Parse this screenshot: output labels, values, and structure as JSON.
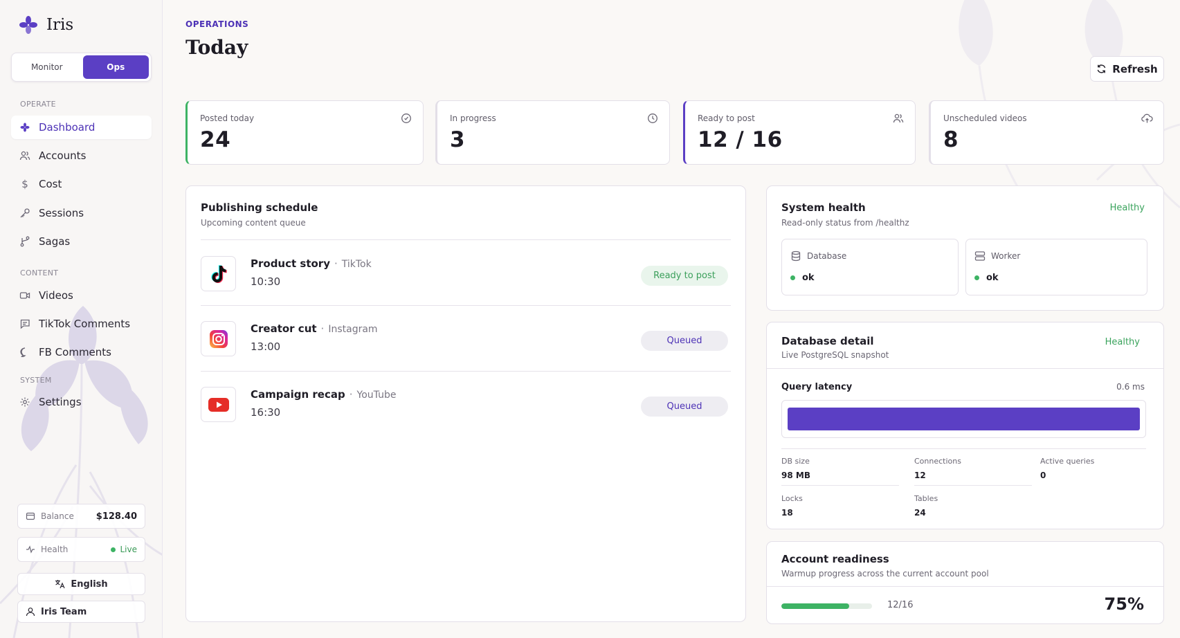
{
  "brand": {
    "name": "Iris"
  },
  "mode_switch": {
    "monitor": "Monitor",
    "ops": "Ops",
    "active": "Ops"
  },
  "sidebar": {
    "sections": {
      "operate": "OPERATE",
      "content": "CONTENT",
      "system": "SYSTEM"
    },
    "items": [
      {
        "label": "Dashboard",
        "icon": "iris-icon",
        "active": true
      },
      {
        "label": "Accounts",
        "icon": "users-icon"
      },
      {
        "label": "Cost",
        "icon": "dollar-icon"
      },
      {
        "label": "Sessions",
        "icon": "key-icon"
      },
      {
        "label": "Sagas",
        "icon": "branch-icon"
      },
      {
        "label": "Videos",
        "icon": "video-icon"
      },
      {
        "label": "TikTok Comments",
        "icon": "comment-square-icon"
      },
      {
        "label": "FB Comments",
        "icon": "comment-round-icon"
      },
      {
        "label": "Settings",
        "icon": "gear-icon"
      }
    ],
    "balance": {
      "label": "Balance",
      "value": "$128.40"
    },
    "health": {
      "label": "Health",
      "status": "Live"
    },
    "language": "English",
    "user": "Iris Team"
  },
  "header": {
    "eyebrow": "OPERATIONS",
    "title": "Today",
    "refresh": "Refresh"
  },
  "stats": [
    {
      "label": "Posted today",
      "value": "24",
      "icon": "clock-check-icon",
      "accent": "#3db364"
    },
    {
      "label": "In progress",
      "value": "3",
      "icon": "clock-icon",
      "accent": "#c9c4d4"
    },
    {
      "label": "Ready to post",
      "value": "12 / 16",
      "icon": "users-icon",
      "accent": "#5b3fc4"
    },
    {
      "label": "Unscheduled videos",
      "value": "8",
      "icon": "cloud-upload-icon",
      "accent": "#c9c4d4"
    }
  ],
  "schedule": {
    "title": "Publishing schedule",
    "subtitle": "Upcoming content queue",
    "items": [
      {
        "title": "Product story",
        "platform": "TikTok",
        "time": "10:30",
        "status": "Ready to post",
        "status_kind": "ready",
        "icon": "tiktok-icon"
      },
      {
        "title": "Creator cut",
        "platform": "Instagram",
        "time": "13:00",
        "status": "Queued",
        "status_kind": "queued",
        "icon": "instagram-icon"
      },
      {
        "title": "Campaign recap",
        "platform": "YouTube",
        "time": "16:30",
        "status": "Queued",
        "status_kind": "queued",
        "icon": "youtube-icon"
      }
    ]
  },
  "system_health": {
    "title": "System health",
    "subtitle": "Read-only status from /healthz",
    "status": "Healthy",
    "services": [
      {
        "name": "Database",
        "status": "ok",
        "icon": "database-icon"
      },
      {
        "name": "Worker",
        "status": "ok",
        "icon": "server-icon"
      }
    ]
  },
  "database_detail": {
    "title": "Database detail",
    "subtitle": "Live PostgreSQL snapshot",
    "status": "Healthy",
    "latency_label": "Query latency",
    "latency_value": "0.6 ms",
    "latency_fill": 1.0,
    "metrics": [
      {
        "label": "DB size",
        "value": "98 MB"
      },
      {
        "label": "Connections",
        "value": "12"
      },
      {
        "label": "Active queries",
        "value": "0"
      },
      {
        "label": "Locks",
        "value": "18"
      },
      {
        "label": "Tables",
        "value": "24"
      }
    ]
  },
  "account_readiness": {
    "title": "Account readiness",
    "subtitle": "Warmup progress across the current account pool",
    "count": "12/16",
    "percent": "75%",
    "progress": 0.75
  },
  "colors": {
    "accent": "#5b3fc4",
    "success": "#3db364",
    "tiktok": "#111111",
    "youtube": "#e52d27",
    "instagram": "#d6249f"
  }
}
